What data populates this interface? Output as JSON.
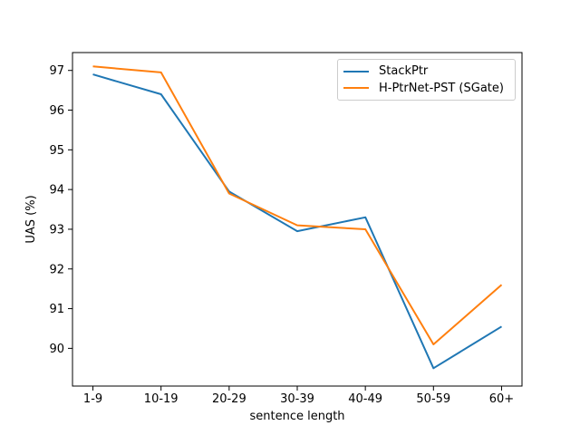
{
  "figure": {
    "background": "#ffffff"
  },
  "chart_data": {
    "type": "line",
    "title": "",
    "xlabel": "sentence length",
    "ylabel": "UAS (%)",
    "categories": [
      "1-9",
      "10-19",
      "20-29",
      "30-39",
      "40-49",
      "50-59",
      "60+"
    ],
    "series": [
      {
        "name": "StackPtr",
        "color": "#1f77b4",
        "values": [
          96.9,
          96.4,
          93.95,
          92.95,
          93.3,
          89.5,
          90.55
        ]
      },
      {
        "name": "H-PtrNet-PST (SGate)",
        "color": "#ff7f0e",
        "values": [
          97.1,
          96.95,
          93.9,
          93.1,
          93.0,
          90.1,
          91.6
        ]
      }
    ],
    "yticks": [
      90,
      91,
      92,
      93,
      94,
      95,
      96,
      97
    ],
    "ylim": [
      89.05,
      97.45
    ],
    "grid": false,
    "legend_position": "upper right",
    "axis_color": "#000000"
  }
}
